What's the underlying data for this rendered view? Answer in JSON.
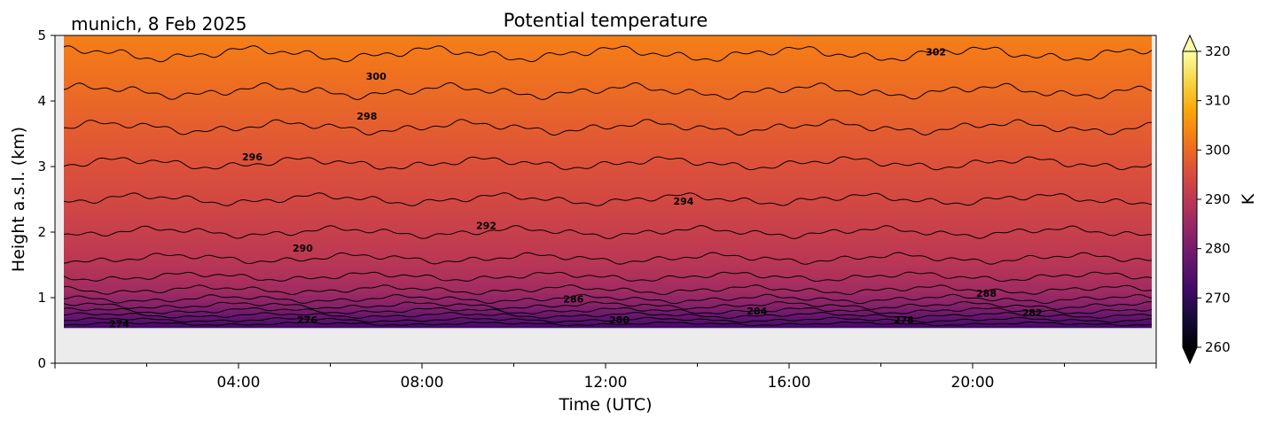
{
  "header": {
    "location_date": "munich, 8 Feb 2025",
    "title": "Potential temperature"
  },
  "colorbar": {
    "label": "K",
    "ticks": [
      "320",
      "310",
      "300",
      "290",
      "280",
      "270",
      "260"
    ],
    "range": [
      260,
      320
    ],
    "extend": "both",
    "colormap": "inferno"
  },
  "chart_data": {
    "type": "heatmap",
    "subtype": "filled-contour with labelled contour lines",
    "title": "Potential temperature",
    "xlabel": "Time (UTC)",
    "ylabel": "Height a.s.l. (km)",
    "x_ticks": [
      "04:00",
      "08:00",
      "12:00",
      "16:00",
      "20:00"
    ],
    "y_ticks": [
      "0",
      "1",
      "2",
      "3",
      "4",
      "5"
    ],
    "x_range_hours": [
      0,
      24
    ],
    "ylim": [
      0,
      5
    ],
    "data_bottom_km": 0.55,
    "no_data_color": "#ececec",
    "contour_levels": [
      {
        "level": 274,
        "height_km": 0.6
      },
      {
        "level": 276,
        "height_km": 0.66
      },
      {
        "level": 278,
        "height_km": 0.73
      },
      {
        "level": 280,
        "height_km": 0.8
      },
      {
        "level": 282,
        "height_km": 0.88
      },
      {
        "level": 284,
        "height_km": 0.98
      },
      {
        "level": 286,
        "height_km": 1.12
      },
      {
        "level": 288,
        "height_km": 1.32
      },
      {
        "level": 290,
        "height_km": 1.6
      },
      {
        "level": 292,
        "height_km": 2.0
      },
      {
        "level": 294,
        "height_km": 2.5
      },
      {
        "level": 296,
        "height_km": 3.05
      },
      {
        "level": 298,
        "height_km": 3.6
      },
      {
        "level": 300,
        "height_km": 4.15
      },
      {
        "level": 302,
        "height_km": 4.72
      }
    ],
    "contour_labels": [
      {
        "text": "274",
        "x_hour": 1.4,
        "height_km": 0.6
      },
      {
        "text": "276",
        "x_hour": 5.5,
        "height_km": 0.66
      },
      {
        "text": "278",
        "x_hour": 18.5,
        "height_km": 0.66
      },
      {
        "text": "280",
        "x_hour": 12.3,
        "height_km": 0.66
      },
      {
        "text": "282",
        "x_hour": 21.3,
        "height_km": 0.77
      },
      {
        "text": "284",
        "x_hour": 15.3,
        "height_km": 0.8
      },
      {
        "text": "286",
        "x_hour": 11.3,
        "height_km": 0.98
      },
      {
        "text": "288",
        "x_hour": 20.3,
        "height_km": 1.07
      },
      {
        "text": "290",
        "x_hour": 5.4,
        "height_km": 1.76
      },
      {
        "text": "292",
        "x_hour": 9.4,
        "height_km": 2.1
      },
      {
        "text": "294",
        "x_hour": 13.7,
        "height_km": 2.47
      },
      {
        "text": "296",
        "x_hour": 4.3,
        "height_km": 3.15
      },
      {
        "text": "298",
        "x_hour": 6.8,
        "height_km": 3.77
      },
      {
        "text": "300",
        "x_hour": 7.0,
        "height_km": 4.38
      },
      {
        "text": "302",
        "x_hour": 19.2,
        "height_km": 4.75
      }
    ]
  }
}
